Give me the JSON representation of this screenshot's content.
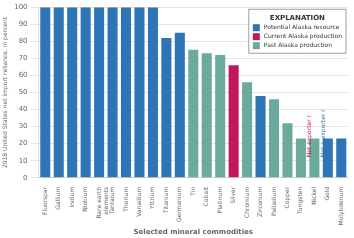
{
  "chart_data": {
    "type": "bar",
    "categories": [
      "Fluorspar",
      "Gallium",
      "Indium",
      "Niobium",
      "Rare earth\nelements",
      "Tantalum",
      "Thorium",
      "Vanadium",
      "Yttrium",
      "Titanium",
      "Germanium",
      "Tin",
      "Cobalt",
      "Platinum",
      "Silver",
      "Chromium",
      "Zirconium",
      "Palladium",
      "Copper",
      "Tungsten",
      "Nickel",
      "Gold",
      "Molybdenum"
    ],
    "series": [
      {
        "name": "Potential Alaska resource",
        "color": "#2e75b6",
        "values": [
          100,
          100,
          100,
          100,
          100,
          100,
          100,
          100,
          100,
          82,
          85,
          null,
          null,
          null,
          null,
          null,
          48,
          null,
          null,
          null,
          null,
          23,
          23
        ]
      },
      {
        "name": "Current Alaska production",
        "color": "#c0175d",
        "values": [
          null,
          null,
          null,
          null,
          null,
          null,
          null,
          null,
          null,
          null,
          null,
          null,
          null,
          null,
          66,
          null,
          null,
          null,
          null,
          null,
          null,
          null,
          null
        ]
      },
      {
        "name": "Past Alaska production",
        "color": "#6aab9e",
        "values": [
          null,
          null,
          null,
          null,
          null,
          null,
          null,
          null,
          null,
          null,
          null,
          75,
          73,
          72,
          null,
          56,
          null,
          46,
          32,
          23,
          23,
          null,
          null
        ]
      }
    ],
    "legend_title": "EXPLANATION",
    "legend": "upper right",
    "ylabel": "2018 United States net import reliance, in percent",
    "xlabel": "Selected mineral commodities",
    "ylim": [
      0,
      100
    ],
    "yticks": [
      0,
      10,
      20,
      30,
      40,
      50,
      60,
      70,
      80,
      90,
      100
    ],
    "grid": true,
    "annotations": [
      {
        "text": "Net exporter r",
        "x": "Nickel",
        "y": 12,
        "color": "#c0175d"
      },
      {
        "text": "Net a exporter r",
        "x": "Gold",
        "y": 12,
        "color": "#2e75b6"
      }
    ]
  }
}
